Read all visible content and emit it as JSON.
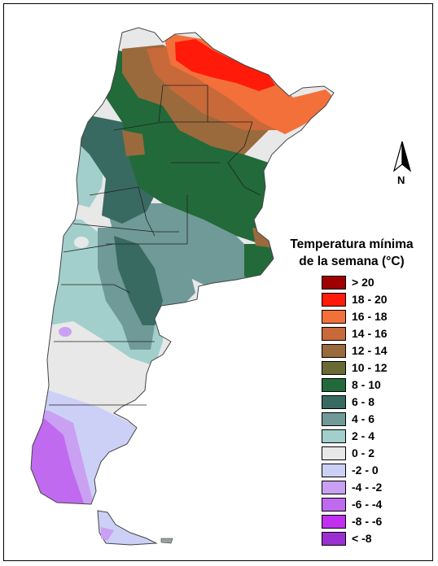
{
  "legend": {
    "title_line1": "Temperatura mínima",
    "title_line2": "de la semana (°C)",
    "items": [
      {
        "label": "> 20",
        "color": "#a00000"
      },
      {
        "label": "18 - 20",
        "color": "#ff1a0a"
      },
      {
        "label": "16 - 18",
        "color": "#f4703a"
      },
      {
        "label": "14 - 16",
        "color": "#c8693a"
      },
      {
        "label": "12 - 14",
        "color": "#9a6a3c"
      },
      {
        "label": "10 - 12",
        "color": "#6a6a34"
      },
      {
        "label": "8 - 10",
        "color": "#226a3a"
      },
      {
        "label": "6 - 8",
        "color": "#396a62"
      },
      {
        "label": "4 - 6",
        "color": "#6f9a98"
      },
      {
        "label": "2 - 4",
        "color": "#a2cfcb"
      },
      {
        "label": "0 - 2",
        "color": "#e8e8e8"
      },
      {
        "label": "-2 - 0",
        "color": "#ccd0f6"
      },
      {
        "label": "-4 - -2",
        "color": "#caa0f2"
      },
      {
        "label": "-6 - -4",
        "color": "#c06af0"
      },
      {
        "label": "-8 - -6",
        "color": "#c030ee"
      },
      {
        "label": "< -8",
        "color": "#9a30d2"
      }
    ]
  },
  "north_arrow": {
    "letter": "N",
    "icon": "north-arrow-icon"
  }
}
